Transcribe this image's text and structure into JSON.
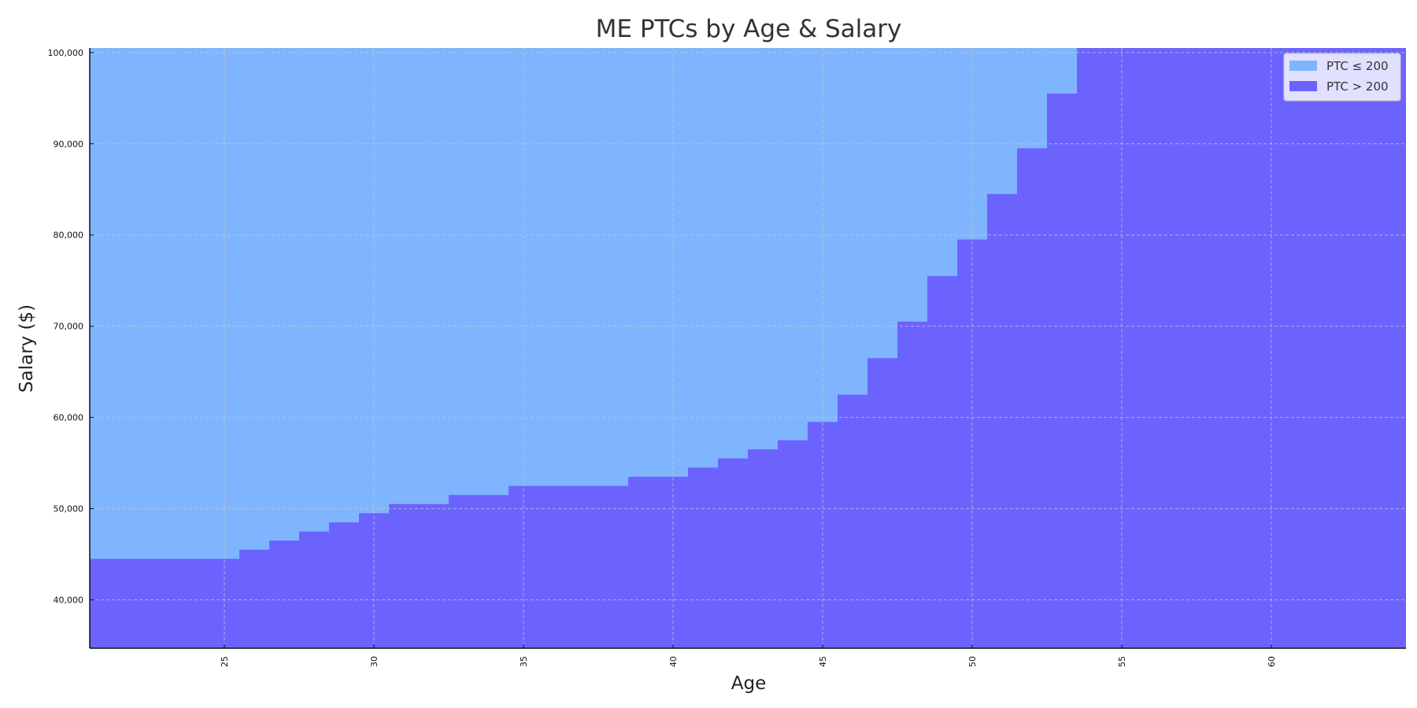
{
  "chart_data": {
    "type": "area",
    "title": "ME PTCs by Age & Salary",
    "xlabel": "Age",
    "ylabel": "Salary ($)",
    "xlim": [
      20.5,
      64.5
    ],
    "ylim": [
      34700,
      100500
    ],
    "x_ticks": [
      25,
      30,
      35,
      40,
      45,
      50,
      55,
      60
    ],
    "y_ticks": [
      40000,
      50000,
      60000,
      70000,
      80000,
      90000,
      100000
    ],
    "y_tick_labels": [
      "40,000",
      "50,000",
      "60,000",
      "70,000",
      "80,000",
      "90,000",
      "100,000"
    ],
    "grid": true,
    "legend_position": "top-right",
    "step_boundary": {
      "description": "salary at which PTC exceeds 200, by age",
      "ages": [
        21,
        22,
        23,
        24,
        25,
        26,
        27,
        28,
        29,
        30,
        31,
        32,
        33,
        34,
        35,
        36,
        37,
        38,
        39,
        40,
        41,
        42,
        43,
        44,
        45,
        46,
        47,
        48,
        49,
        50,
        51,
        52,
        53,
        54,
        55,
        56,
        57,
        58,
        59,
        60,
        61,
        62,
        63,
        64
      ],
      "salary": [
        44500,
        44500,
        44500,
        44500,
        44500,
        45500,
        46500,
        47500,
        48500,
        49500,
        50500,
        50500,
        51500,
        51500,
        52500,
        52500,
        52500,
        52500,
        53500,
        53500,
        54500,
        55500,
        56500,
        57500,
        59500,
        62500,
        66500,
        70500,
        75500,
        79500,
        84500,
        89500,
        95500,
        100500,
        100500,
        100500,
        100500,
        100500,
        100500,
        100500,
        100500,
        100500,
        100500,
        100500
      ]
    },
    "series": [
      {
        "name": "PTC ≤ 200",
        "region": "above boundary",
        "color": "#7fb5ff"
      },
      {
        "name": "PTC > 200",
        "region": "below boundary",
        "color": "#6c63ff"
      }
    ]
  }
}
